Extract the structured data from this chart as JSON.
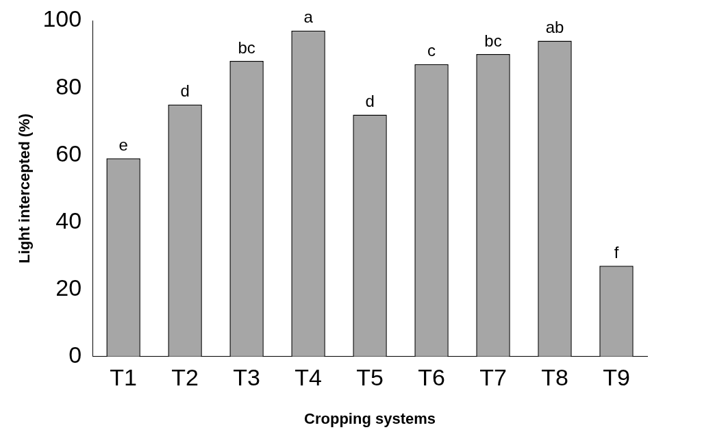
{
  "chart_data": {
    "type": "bar",
    "xlabel": "Cropping systems",
    "ylabel": "Light intercepted (%)",
    "categories": [
      "T1",
      "T2",
      "T3",
      "T4",
      "T5",
      "T6",
      "T7",
      "T8",
      "T9"
    ],
    "values": [
      59,
      75,
      88,
      97,
      72,
      87,
      90,
      94,
      27
    ],
    "color": "#a6a6a6",
    "ylim": [
      0,
      100
    ],
    "yticks": [
      0,
      20,
      40,
      60,
      80,
      100
    ],
    "grid": false,
    "legend": false,
    "annotations": [
      {
        "text": "e",
        "x": "T1",
        "y": 59
      },
      {
        "text": "d",
        "x": "T2",
        "y": 75
      },
      {
        "text": "bc",
        "x": "T3",
        "y": 88
      },
      {
        "text": "a",
        "x": "T4",
        "y": 97
      },
      {
        "text": "d",
        "x": "T5",
        "y": 72
      },
      {
        "text": "c",
        "x": "T6",
        "y": 87
      },
      {
        "text": "bc",
        "x": "T7",
        "y": 90
      },
      {
        "text": "ab",
        "x": "T8",
        "y": 94
      },
      {
        "text": "f",
        "x": "T9",
        "y": 27
      }
    ]
  }
}
